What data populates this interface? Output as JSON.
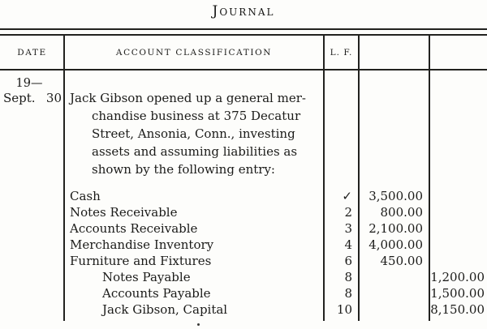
{
  "title": "Journal",
  "colors": {
    "ink": "#1b1b19",
    "paper": "#fdfdfb",
    "rule": "#22221f"
  },
  "table": {
    "headers": {
      "date": "DATE",
      "account": "ACCOUNT CLASSIFICATION",
      "lf": "L. F.",
      "debit": "",
      "credit": ""
    }
  },
  "date": {
    "year": "19—",
    "month": "Sept.",
    "day": "30"
  },
  "narrative": {
    "lines": [
      "Jack Gibson opened up a general mer-",
      "chandise business at 375 Decatur",
      "Street, Ansonia, Conn., investing",
      "assets and assuming liabilities as",
      "shown by the following entry:"
    ]
  },
  "entries": [
    {
      "account": "Cash",
      "lf": "✓",
      "debit": "3,500.00",
      "credit": ""
    },
    {
      "account": "Notes Receivable",
      "lf": "2",
      "debit": "800.00",
      "credit": ""
    },
    {
      "account": "Accounts Receivable",
      "lf": "3",
      "debit": "2,100.00",
      "credit": ""
    },
    {
      "account": "Merchandise Inventory",
      "lf": "4",
      "debit": "4,000.00",
      "credit": ""
    },
    {
      "account": "Furniture and Fixtures",
      "lf": "6",
      "debit": "450.00",
      "credit": ""
    },
    {
      "account": "Notes Payable",
      "lf": "8",
      "debit": "",
      "credit": "1,200.00",
      "indent": true
    },
    {
      "account": "Accounts Payable",
      "lf": "8",
      "debit": "",
      "credit": "1,500.00",
      "indent": true
    },
    {
      "account": "Jack Gibson, Capital",
      "lf": "10",
      "debit": "",
      "credit": "8,150.00",
      "indent": true
    }
  ]
}
